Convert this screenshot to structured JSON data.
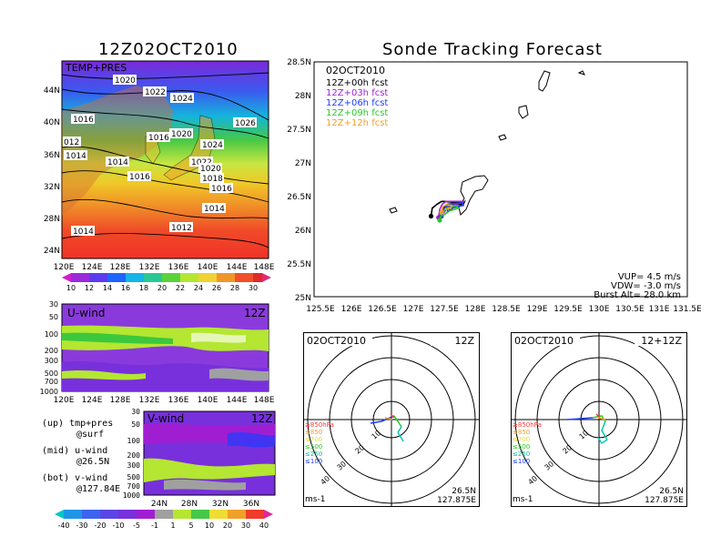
{
  "left_title": "12Z02OCT2010",
  "right_title": "Sonde Tracking Forecast",
  "colors": {
    "purple": "#a01ed2",
    "violet": "#7830dc",
    "blue": "#1e3cff",
    "ltblue": "#00a0e6",
    "cyan": "#00d2dc",
    "teal": "#00c8a0",
    "green": "#28c828",
    "lime": "#a0e632",
    "yellow": "#e6dc32",
    "orange": "#f0a028",
    "red": "#fa3c3c",
    "magenta": "#f000a0",
    "gray": "#a0a0a0"
  },
  "map_panel": {
    "label": "TEMP+PRES",
    "lat_labels": [
      "44N",
      "40N",
      "36N",
      "32N",
      "28N",
      "24N"
    ],
    "lon_labels": [
      "120E",
      "124E",
      "128E",
      "132E",
      "136E",
      "140E",
      "144E",
      "148E"
    ],
    "isobar_labels": [
      "1020",
      "1022",
      "1024",
      "1016",
      "1016",
      "1020",
      "1026",
      "012",
      "1014",
      "1014",
      "1024",
      "1016",
      "1022",
      "1020",
      "1018",
      "1016",
      "1014",
      "1012",
      "1014"
    ],
    "colorbar": {
      "labels": [
        "10",
        "12",
        "14",
        "16",
        "18",
        "20",
        "22",
        "24",
        "26",
        "28",
        "30"
      ]
    }
  },
  "uwind_panel": {
    "label": "U-wind",
    "time": "12Z",
    "y_labels": [
      "30",
      "50",
      "100",
      "200",
      "300",
      "500",
      "700",
      "1000"
    ],
    "x_labels": [
      "120E",
      "124E",
      "128E",
      "132E",
      "136E",
      "140E",
      "144E",
      "148E"
    ]
  },
  "vwind_panel": {
    "label": "V-wind",
    "time": "12Z",
    "y_labels": [
      "30",
      "50",
      "100",
      "200",
      "300",
      "500",
      "700",
      "1000"
    ],
    "x_labels": [
      "24N",
      "28N",
      "32N",
      "36N"
    ],
    "colorbar": {
      "labels": [
        "-40",
        "-30",
        "-20",
        "-10",
        "-5",
        "-1",
        "1",
        "5",
        "10",
        "20",
        "30",
        "40"
      ]
    }
  },
  "notes": {
    "up1": "(up) tmp+pres",
    "up2": "@surf",
    "mid1": "(mid) u-wind",
    "mid2": "@26.5N",
    "bot1": "(bot) v-wind",
    "bot2": "@127.84E"
  },
  "track_panel": {
    "date": "02OCT2010",
    "legend": [
      "12Z+00h fcst",
      "12Z+03h fcst",
      "12Z+06h fcst",
      "12Z+09h fcst",
      "12Z+12h fcst"
    ],
    "lat_labels": [
      "28.5N",
      "28N",
      "27.5N",
      "27N",
      "26.5N",
      "26N",
      "25.5N",
      "25N"
    ],
    "lon_labels": [
      "125.5E",
      "126E",
      "126.5E",
      "127E",
      "127.5E",
      "128E",
      "128.5E",
      "129E",
      "129.5E",
      "130E",
      "130.5E",
      "131E",
      "131.5E"
    ],
    "vup": "VUP= 4.5 m/s",
    "vdw": "VDW= -3.0 m/s",
    "burst": "Burst Alt= 28.0 km"
  },
  "chart_data": {
    "type": "line",
    "title": "Sonde Tracking Forecast",
    "xlim": [
      125.5,
      131.5
    ],
    "ylim": [
      25,
      28.5
    ],
    "series": [
      {
        "name": "12Z+00h fcst",
        "x": [
          127.38,
          127.4,
          127.48,
          127.55,
          127.6,
          127.8,
          127.92,
          127.9,
          127.62,
          127.55
        ],
        "y": [
          26.2,
          26.32,
          26.38,
          26.42,
          26.42,
          26.4,
          26.42,
          26.38,
          26.36,
          26.28
        ]
      },
      {
        "name": "12Z+03h fcst",
        "x": [
          127.5,
          127.52,
          127.56,
          127.62,
          127.85,
          127.92,
          127.8,
          127.65,
          127.58
        ],
        "y": [
          26.18,
          26.3,
          26.38,
          26.42,
          26.42,
          26.42,
          26.38,
          26.34,
          26.24
        ]
      },
      {
        "name": "12Z+06h fcst",
        "x": [
          127.55,
          127.58,
          127.65,
          127.88,
          127.9,
          127.7,
          127.62
        ],
        "y": [
          26.2,
          26.3,
          26.38,
          26.4,
          26.36,
          26.32,
          26.24
        ]
      },
      {
        "name": "12Z+09h fcst",
        "x": [
          127.52,
          127.55,
          127.62,
          127.78,
          127.82,
          127.68,
          127.56
        ],
        "y": [
          26.14,
          26.24,
          26.32,
          26.36,
          26.32,
          26.28,
          26.2
        ]
      },
      {
        "name": "12Z+12h fcst",
        "x": [
          127.55,
          127.57,
          127.62,
          127.72,
          127.7,
          127.6
        ],
        "y": [
          26.26,
          26.34,
          26.37,
          26.36,
          26.32,
          26.3
        ]
      }
    ],
    "hodographs": [
      {
        "date": "02OCT2010",
        "time": "12Z",
        "ring_labels": [
          "10",
          "20",
          "30",
          "40"
        ],
        "levels": [
          "≥850hPa",
          "≤850",
          "≤700",
          "≤500",
          "≤250",
          "≤100"
        ],
        "location": [
          "26.5N",
          "127.875E"
        ],
        "unit": "ms-1"
      },
      {
        "date": "02OCT2010",
        "time": "12+12Z",
        "ring_labels": [
          "10",
          "20",
          "30",
          "40"
        ],
        "levels": [
          "≥850hPa",
          "≤850",
          "≤700",
          "≤500",
          "≤250",
          "≤100"
        ],
        "location": [
          "26.5N",
          "127.875E"
        ],
        "unit": "ms-1"
      }
    ]
  }
}
